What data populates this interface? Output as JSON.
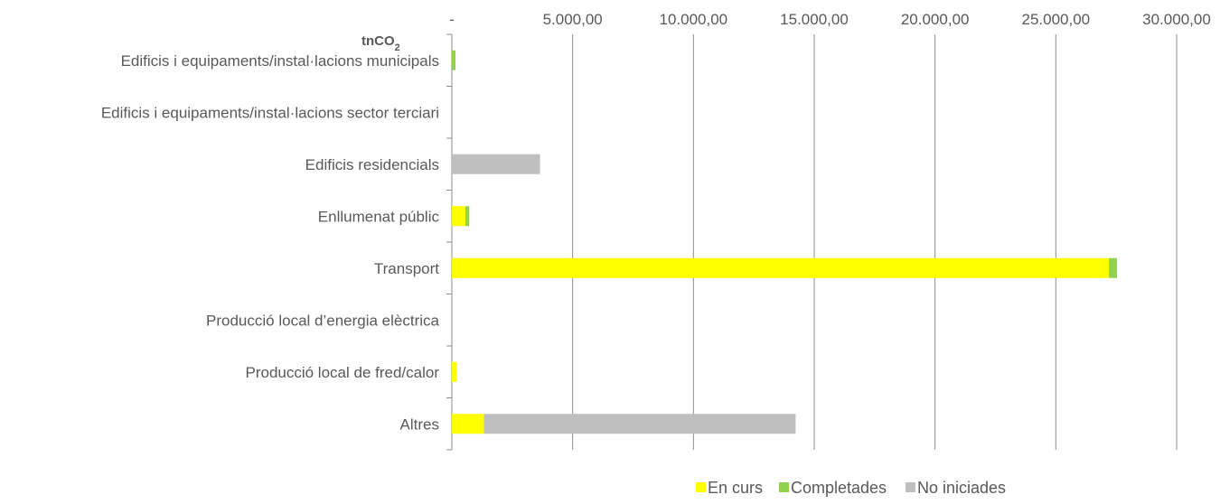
{
  "chart_data": {
    "type": "bar",
    "orientation": "horizontal",
    "stacked": true,
    "unit_label": {
      "main": "tnCO",
      "sub": "2"
    },
    "xlim": [
      0,
      30000
    ],
    "x_ticks": [
      {
        "value": 0,
        "label": "-"
      },
      {
        "value": 5000,
        "label": "5.000,00"
      },
      {
        "value": 10000,
        "label": "10.000,00"
      },
      {
        "value": 15000,
        "label": "15.000,00"
      },
      {
        "value": 20000,
        "label": "20.000,00"
      },
      {
        "value": 25000,
        "label": "25.000,00"
      },
      {
        "value": 30000,
        "label": "30.000,00"
      }
    ],
    "axis_position": "top",
    "grid": true,
    "legend_position": "bottom",
    "categories": [
      "Edificis i equipaments/instal·lacions municipals",
      "Edificis i equipaments/instal·lacions sector terciari",
      "Edificis residencials",
      "Enllumenat públic",
      "Transport",
      "Producció local d’energia elèctrica",
      "Producció local de fred/calor",
      "Altres"
    ],
    "series": [
      {
        "name": "En curs",
        "color": "#FFFF00",
        "values": [
          0,
          0,
          0,
          560,
          27200,
          0,
          200,
          1330
        ]
      },
      {
        "name": "Completades",
        "color": "#92D050",
        "values": [
          150,
          0,
          0,
          150,
          330,
          0,
          0,
          0
        ]
      },
      {
        "name": "No iniciades",
        "color": "#BFBFBF",
        "values": [
          0,
          0,
          3650,
          0,
          0,
          0,
          0,
          12900
        ]
      }
    ]
  }
}
